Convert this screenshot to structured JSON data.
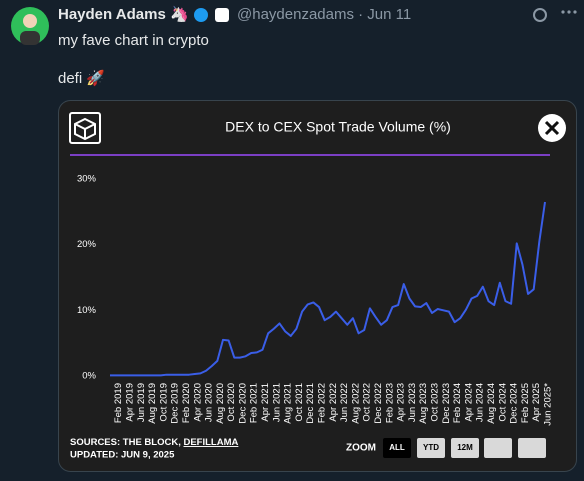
{
  "tweet": {
    "name": "Hayden Adams 🦄",
    "handle_line": "@haydenzadams · Jun 11",
    "text": "my fave chart in crypto",
    "text2": "defi 🚀"
  },
  "chart_data": {
    "type": "line",
    "title": "DEX to CEX Spot Trade Volume (%)",
    "categories": [
      null,
      "Feb 2019",
      null,
      "Apr 2019",
      null,
      "Jun 2019",
      null,
      "Aug 2019",
      null,
      "Oct 2019",
      null,
      "Dec 2019",
      null,
      "Feb 2020",
      null,
      "Apr 2020",
      null,
      "Jun 2020",
      null,
      "Aug 2020",
      null,
      "Oct 2020",
      null,
      "Dec 2020",
      null,
      "Feb 2021",
      null,
      "Apr 2021",
      null,
      "Jun 2021",
      null,
      "Aug 2021",
      null,
      "Oct 2021",
      null,
      "Dec 2021",
      null,
      "Feb 2022",
      null,
      "Apr 2022",
      null,
      "Jun 2022",
      null,
      "Aug 2022",
      null,
      "Oct 2022",
      null,
      "Dec 2022",
      null,
      "Feb 2023",
      null,
      "Apr 2023",
      null,
      "Jun 2023",
      null,
      "Aug 2023",
      null,
      "Oct 2023",
      null,
      "Dec 2023",
      null,
      "Feb 2024",
      null,
      "Apr 2024",
      null,
      "Jun 2024",
      null,
      "Aug 2024",
      null,
      "Oct 2024",
      null,
      "Dec 2024",
      null,
      "Feb 2025",
      null,
      "Apr 2025",
      null,
      "Jun 2025*"
    ],
    "values": [
      0.1,
      0.1,
      0.1,
      0.1,
      0.1,
      0.1,
      0.1,
      0.1,
      0.1,
      0.1,
      0.2,
      0.2,
      0.2,
      0.2,
      0.2,
      0.3,
      0.4,
      0.8,
      1.5,
      2.3,
      5.5,
      5.4,
      2.8,
      2.8,
      3.0,
      3.5,
      3.6,
      4.0,
      6.5,
      7.2,
      8.0,
      6.8,
      6.1,
      7.2,
      9.8,
      10.9,
      11.2,
      10.5,
      8.5,
      9.0,
      9.8,
      8.8,
      7.8,
      8.8,
      6.5,
      7.0,
      10.3,
      9.0,
      7.8,
      8.5,
      10.5,
      10.8,
      14.0,
      11.8,
      10.6,
      10.5,
      11.1,
      9.6,
      10.2,
      10.0,
      9.8,
      8.2,
      8.8,
      10.1,
      11.8,
      12.2,
      13.6,
      11.4,
      10.8,
      14.2,
      11.4,
      11.0,
      20.2,
      17.0,
      12.5,
      13.2,
      20.5,
      26.5
    ],
    "color": "#3a5ee8",
    "ylim": [
      0,
      30
    ],
    "yticks": [
      {
        "value": 0,
        "label": "0%"
      },
      {
        "value": 10,
        "label": "10%"
      },
      {
        "value": 20,
        "label": "20%"
      },
      {
        "value": 30,
        "label": "30%"
      }
    ],
    "grid": false,
    "sources_label": "SOURCES: THE BLOCK,",
    "sources_link": "DEFILLAMA",
    "updated": "UPDATED: JUN 9, 2025",
    "zoom_label": "ZOOM",
    "zoom_buttons": [
      "ALL",
      "YTD",
      "12M"
    ]
  }
}
